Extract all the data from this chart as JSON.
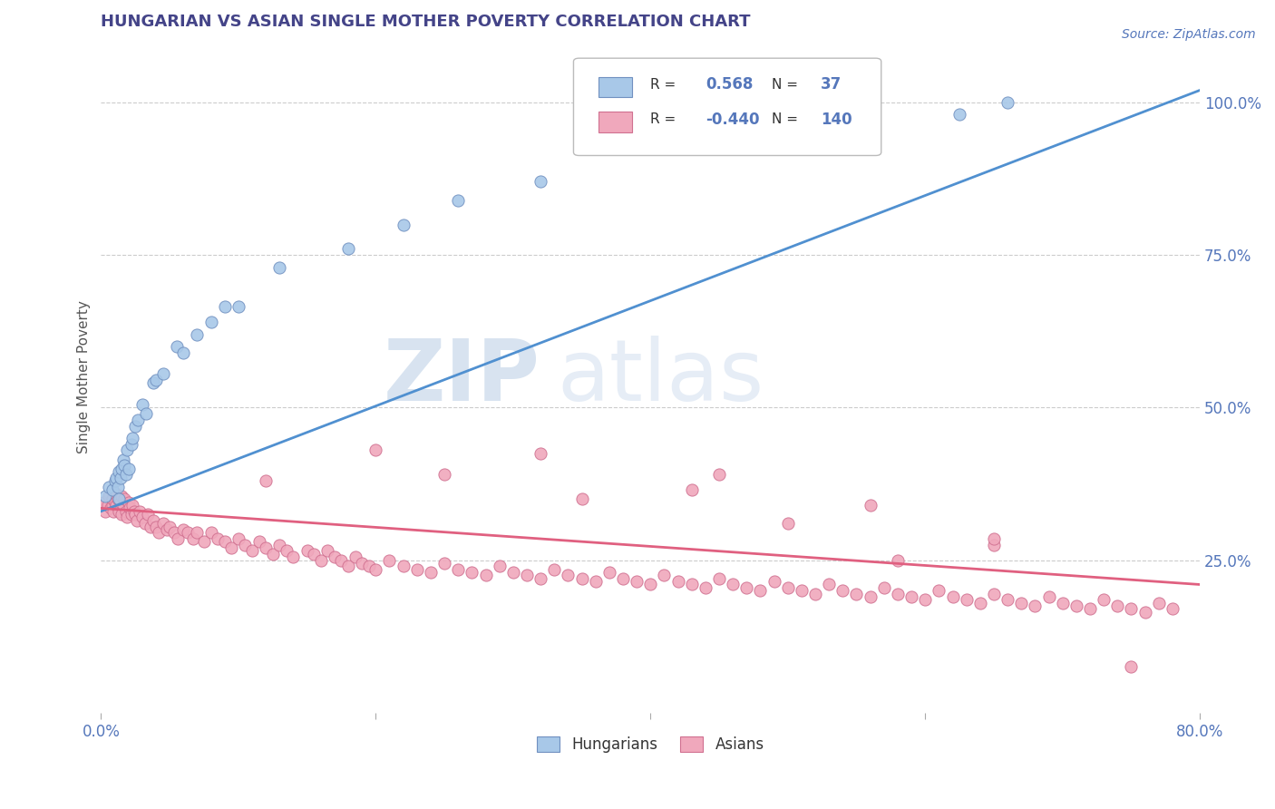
{
  "title": "HUNGARIAN VS ASIAN SINGLE MOTHER POVERTY CORRELATION CHART",
  "source": "Source: ZipAtlas.com",
  "ylabel": "Single Mother Poverty",
  "xlim": [
    0.0,
    0.8
  ],
  "ylim": [
    0.0,
    1.1
  ],
  "ytick_right_vals": [
    0.25,
    0.5,
    0.75,
    1.0
  ],
  "ytick_right_labels": [
    "25.0%",
    "50.0%",
    "75.0%",
    "100.0%"
  ],
  "hungarian_color": "#a8c8e8",
  "asian_color": "#f0a8bc",
  "hungarian_edge": "#7090c0",
  "asian_edge": "#d07090",
  "blue_line_color": "#5090d0",
  "pink_line_color": "#e06080",
  "legend_R_hun": "0.568",
  "legend_N_hun": "37",
  "legend_R_asi": "-0.440",
  "legend_N_asi": "140",
  "watermark_zip": "ZIP",
  "watermark_atlas": "atlas",
  "background_color": "#ffffff",
  "grid_color": "#cccccc",
  "title_color": "#444488",
  "axis_color": "#5577bb",
  "hun_x": [
    0.003,
    0.006,
    0.008,
    0.01,
    0.011,
    0.012,
    0.013,
    0.013,
    0.014,
    0.015,
    0.016,
    0.017,
    0.018,
    0.019,
    0.02,
    0.022,
    0.023,
    0.025,
    0.027,
    0.03,
    0.033,
    0.038,
    0.04,
    0.045,
    0.055,
    0.06,
    0.07,
    0.08,
    0.09,
    0.1,
    0.13,
    0.18,
    0.22,
    0.26,
    0.32,
    0.625,
    0.66
  ],
  "hun_y": [
    0.355,
    0.37,
    0.365,
    0.38,
    0.385,
    0.37,
    0.395,
    0.35,
    0.385,
    0.4,
    0.415,
    0.405,
    0.39,
    0.43,
    0.4,
    0.44,
    0.45,
    0.47,
    0.48,
    0.505,
    0.49,
    0.54,
    0.545,
    0.555,
    0.6,
    0.59,
    0.62,
    0.64,
    0.665,
    0.665,
    0.73,
    0.76,
    0.8,
    0.84,
    0.87,
    0.98,
    1.0
  ],
  "asi_x": [
    0.002,
    0.003,
    0.005,
    0.006,
    0.007,
    0.008,
    0.008,
    0.009,
    0.01,
    0.01,
    0.011,
    0.012,
    0.013,
    0.014,
    0.015,
    0.015,
    0.016,
    0.017,
    0.018,
    0.019,
    0.02,
    0.021,
    0.022,
    0.023,
    0.024,
    0.025,
    0.026,
    0.028,
    0.03,
    0.032,
    0.034,
    0.036,
    0.038,
    0.04,
    0.042,
    0.045,
    0.048,
    0.05,
    0.053,
    0.056,
    0.06,
    0.063,
    0.067,
    0.07,
    0.075,
    0.08,
    0.085,
    0.09,
    0.095,
    0.1,
    0.105,
    0.11,
    0.115,
    0.12,
    0.125,
    0.13,
    0.135,
    0.14,
    0.15,
    0.155,
    0.16,
    0.165,
    0.17,
    0.175,
    0.18,
    0.185,
    0.19,
    0.195,
    0.2,
    0.21,
    0.22,
    0.23,
    0.24,
    0.25,
    0.26,
    0.27,
    0.28,
    0.29,
    0.3,
    0.31,
    0.32,
    0.33,
    0.34,
    0.35,
    0.36,
    0.37,
    0.38,
    0.39,
    0.4,
    0.41,
    0.42,
    0.43,
    0.44,
    0.45,
    0.46,
    0.47,
    0.48,
    0.49,
    0.5,
    0.51,
    0.52,
    0.53,
    0.54,
    0.55,
    0.56,
    0.57,
    0.58,
    0.59,
    0.6,
    0.61,
    0.62,
    0.63,
    0.64,
    0.65,
    0.66,
    0.67,
    0.68,
    0.69,
    0.7,
    0.71,
    0.72,
    0.73,
    0.74,
    0.75,
    0.76,
    0.77,
    0.78,
    0.25,
    0.32,
    0.43,
    0.5,
    0.58,
    0.65,
    0.12,
    0.2,
    0.35,
    0.45,
    0.56,
    0.65,
    0.75
  ],
  "asi_y": [
    0.345,
    0.33,
    0.34,
    0.355,
    0.335,
    0.34,
    0.35,
    0.33,
    0.345,
    0.36,
    0.34,
    0.35,
    0.33,
    0.345,
    0.355,
    0.325,
    0.34,
    0.35,
    0.33,
    0.32,
    0.345,
    0.335,
    0.325,
    0.34,
    0.33,
    0.325,
    0.315,
    0.33,
    0.32,
    0.31,
    0.325,
    0.305,
    0.315,
    0.305,
    0.295,
    0.31,
    0.3,
    0.305,
    0.295,
    0.285,
    0.3,
    0.295,
    0.285,
    0.295,
    0.28,
    0.295,
    0.285,
    0.28,
    0.27,
    0.285,
    0.275,
    0.265,
    0.28,
    0.27,
    0.26,
    0.275,
    0.265,
    0.255,
    0.265,
    0.26,
    0.25,
    0.265,
    0.255,
    0.25,
    0.24,
    0.255,
    0.245,
    0.24,
    0.235,
    0.25,
    0.24,
    0.235,
    0.23,
    0.245,
    0.235,
    0.23,
    0.225,
    0.24,
    0.23,
    0.225,
    0.22,
    0.235,
    0.225,
    0.22,
    0.215,
    0.23,
    0.22,
    0.215,
    0.21,
    0.225,
    0.215,
    0.21,
    0.205,
    0.22,
    0.21,
    0.205,
    0.2,
    0.215,
    0.205,
    0.2,
    0.195,
    0.21,
    0.2,
    0.195,
    0.19,
    0.205,
    0.195,
    0.19,
    0.185,
    0.2,
    0.19,
    0.185,
    0.18,
    0.195,
    0.185,
    0.18,
    0.175,
    0.19,
    0.18,
    0.175,
    0.17,
    0.185,
    0.175,
    0.17,
    0.165,
    0.18,
    0.17,
    0.39,
    0.425,
    0.365,
    0.31,
    0.25,
    0.275,
    0.38,
    0.43,
    0.35,
    0.39,
    0.34,
    0.285,
    0.075
  ]
}
